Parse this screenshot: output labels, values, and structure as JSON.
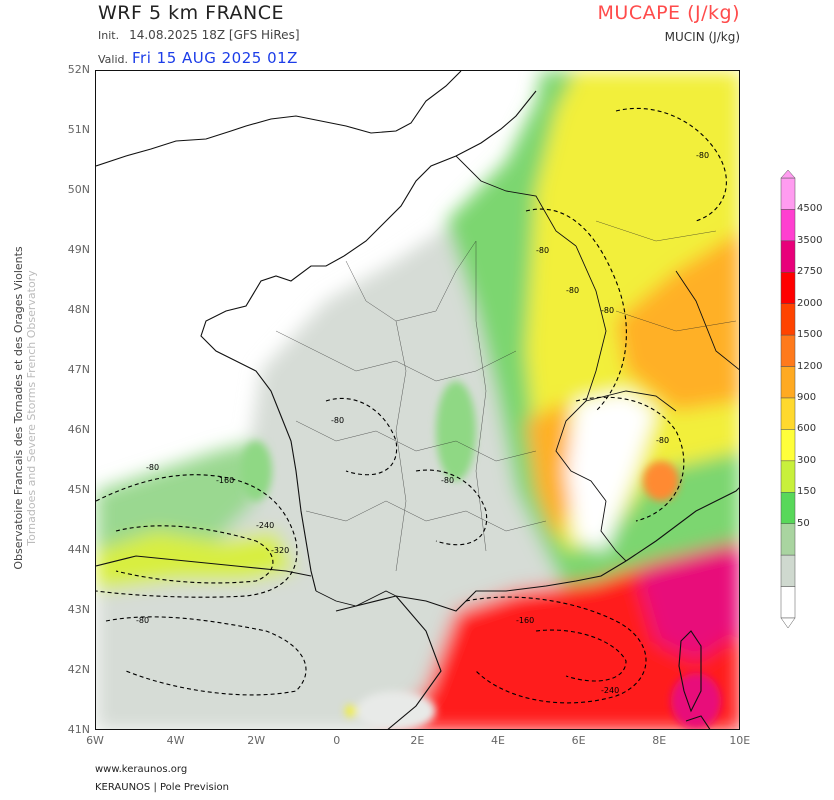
{
  "header": {
    "model_title": "WRF 5 km FRANCE",
    "init_label": "Init.",
    "init_value": "14.08.2025 18Z [GFS HiRes]",
    "valid_label": "Valid.",
    "valid_value": "Fri 15 AUG 2025 01Z",
    "variable_title": "MUCAPE (J/kg)",
    "variable_subtitle": "MUCIN (J/kg)"
  },
  "axes": {
    "lat_labels": [
      "52N",
      "51N",
      "50N",
      "49N",
      "48N",
      "47N",
      "46N",
      "45N",
      "44N",
      "43N",
      "42N",
      "41N"
    ],
    "lon_labels": [
      "6W",
      "4W",
      "2W",
      "0",
      "2E",
      "4E",
      "6E",
      "8E",
      "10E"
    ]
  },
  "colorbar": {
    "labels": [
      "4500",
      "3500",
      "2750",
      "2000",
      "1500",
      "1200",
      "900",
      "600",
      "300",
      "150",
      "50"
    ],
    "colors": [
      "#ff9cf0",
      "#ff3fd0",
      "#e8007a",
      "#ff0000",
      "#ff4400",
      "#ff7a1c",
      "#ffaa22",
      "#ffd92e",
      "#ffff3a",
      "#c8f03c",
      "#58d85a",
      "#a9d4a0",
      "#cfd9cf",
      "#ffffff"
    ]
  },
  "contour_labels": [
    "-80",
    "-160",
    "-240",
    "-320",
    "-80",
    "-80",
    "-80",
    "-80",
    "-160",
    "-240",
    "-80",
    "-80",
    "-80",
    "-80"
  ],
  "credits": {
    "vertical_line1": "Observatoire Francais des Tornades et des Orages Violents",
    "vertical_line2": "Tornadoes and Severe Storms French Observatory",
    "website": "www.keraunos.org",
    "company": "KERAUNOS | Pole Prevision"
  }
}
